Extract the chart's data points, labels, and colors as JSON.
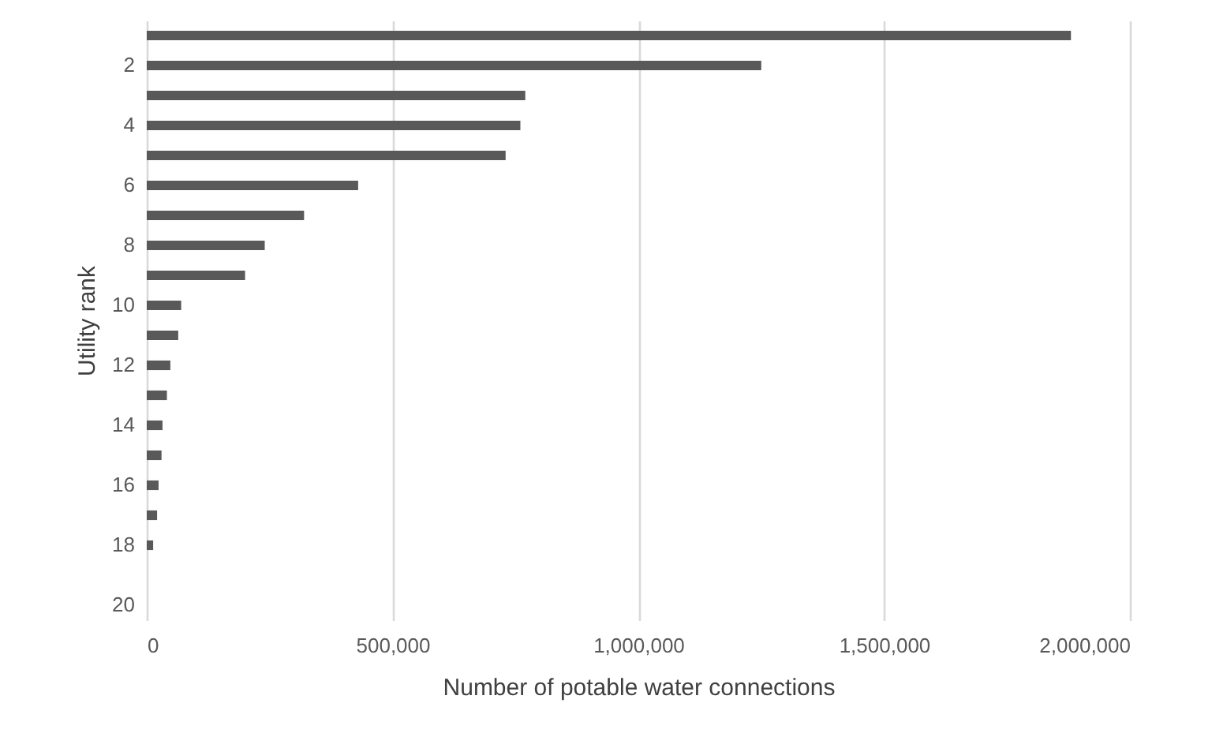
{
  "chart_data": {
    "type": "bar",
    "orientation": "horizontal",
    "xlabel": "Number of potable water connections",
    "ylabel": "Utility rank",
    "categories": [
      null,
      "2",
      null,
      "4",
      null,
      "6",
      null,
      "8",
      null,
      "10",
      null,
      "12",
      null,
      "14",
      null,
      "16",
      null,
      "18",
      null,
      "20"
    ],
    "values": [
      1880000,
      1250000,
      770000,
      760000,
      730000,
      430000,
      320000,
      240000,
      200000,
      70000,
      64000,
      48000,
      41000,
      32000,
      30000,
      24000,
      21000,
      13000,
      null,
      null
    ],
    "color": "#595959",
    "xlim": [
      0,
      2000000
    ],
    "xticks": [
      0,
      {
        "value": 500000,
        "label": "500,000"
      },
      {
        "value": 1000000,
        "label": "1,000,000"
      },
      {
        "value": 1500000,
        "label": "1,500,000"
      },
      {
        "value": 2000000,
        "label": "2,000,000"
      }
    ],
    "grid": "x"
  }
}
